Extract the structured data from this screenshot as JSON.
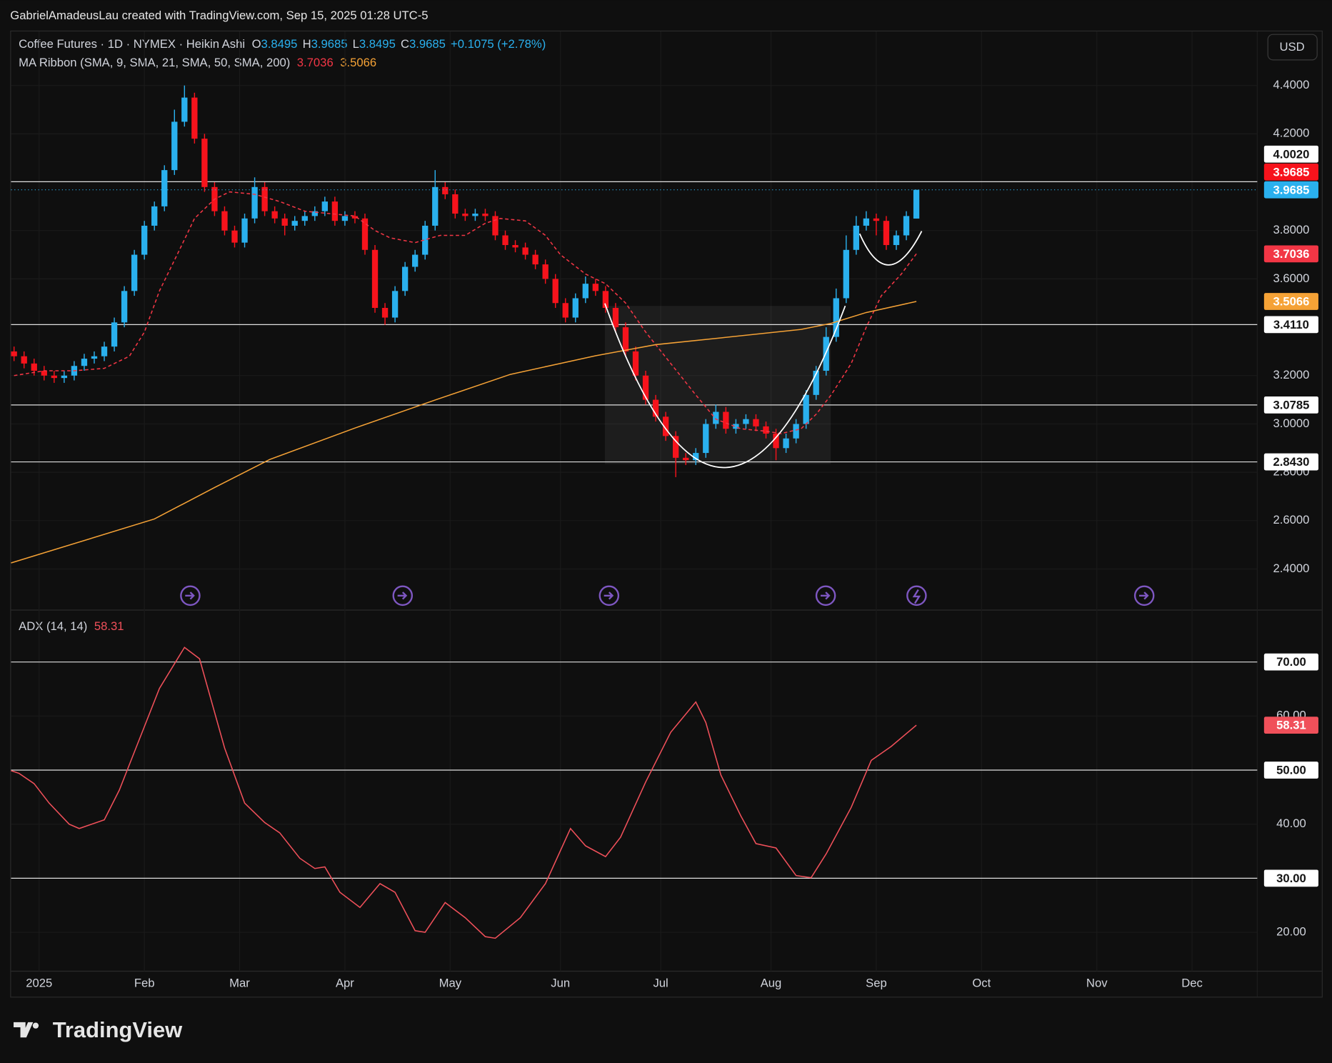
{
  "header": {
    "attribution": "GabrielAmadeusLau created with TradingView.com, Sep 15, 2025 01:28 UTC-5",
    "logo": "TradingView"
  },
  "chart_data": [
    {
      "type": "candlestick",
      "title": "Coffee Futures · 1D · NYMEX · Heikin Ashi",
      "ohlc": [
        {
          "label": "O",
          "value": 3.8495
        },
        {
          "label": "H",
          "value": 3.9685
        },
        {
          "label": "L",
          "value": 3.8495
        },
        {
          "label": "C",
          "value": 3.9685
        }
      ],
      "change": "+0.1075 (+2.78%)",
      "currency": "USD",
      "indicator": "MA Ribbon (SMA, 9, SMA, 21, SMA, 50, SMA, 200)",
      "up_color": "#2ab0ee",
      "down_color": "#f7131c",
      "x": [
        -5,
        -3,
        -1,
        1,
        3,
        5,
        7,
        9,
        11,
        13,
        15,
        17,
        19,
        21,
        23,
        25,
        27,
        29,
        31,
        33,
        35,
        37,
        39,
        41,
        43,
        45,
        47,
        49,
        51,
        53,
        55,
        57,
        59,
        61,
        63,
        65,
        67,
        69,
        71,
        73,
        75,
        77,
        79,
        81,
        83,
        85,
        87,
        89,
        91,
        93,
        95,
        97,
        99,
        101,
        103,
        105,
        107,
        109,
        111,
        113,
        115,
        117,
        119,
        121,
        123,
        125,
        127,
        129,
        131,
        133,
        135,
        137,
        139,
        141,
        143,
        145,
        147,
        149,
        151,
        153,
        155,
        157,
        159,
        161,
        163,
        165,
        167,
        169,
        171,
        173,
        175
      ],
      "open": [
        3.3,
        3.28,
        3.25,
        3.22,
        3.2,
        3.19,
        3.2,
        3.24,
        3.27,
        3.28,
        3.32,
        3.42,
        3.55,
        3.7,
        3.82,
        3.9,
        4.05,
        4.25,
        4.35,
        4.18,
        3.98,
        3.88,
        3.8,
        3.75,
        3.85,
        3.98,
        3.88,
        3.85,
        3.82,
        3.84,
        3.86,
        3.88,
        3.92,
        3.84,
        3.86,
        3.85,
        3.72,
        3.48,
        3.44,
        3.55,
        3.65,
        3.7,
        3.82,
        3.98,
        3.95,
        3.87,
        3.86,
        3.87,
        3.86,
        3.78,
        3.74,
        3.73,
        3.7,
        3.66,
        3.6,
        3.5,
        3.44,
        3.52,
        3.58,
        3.55,
        3.48,
        3.4,
        3.3,
        3.2,
        3.1,
        3.03,
        2.95,
        2.86,
        2.85,
        2.88,
        3.0,
        3.05,
        2.98,
        3.0,
        3.02,
        2.99,
        2.96,
        2.9,
        2.94,
        3.0,
        3.12,
        3.22,
        3.36,
        3.52,
        3.72,
        3.82,
        3.85,
        3.84,
        3.74,
        3.78,
        3.8495
      ],
      "high": [
        3.32,
        3.3,
        3.27,
        3.24,
        3.22,
        3.22,
        3.26,
        3.29,
        3.3,
        3.34,
        3.44,
        3.57,
        3.72,
        3.84,
        3.92,
        4.07,
        4.3,
        4.4,
        4.37,
        4.2,
        4.0,
        3.9,
        3.82,
        3.87,
        4.02,
        4.0,
        3.9,
        3.87,
        3.86,
        3.88,
        3.9,
        3.94,
        3.94,
        3.88,
        3.88,
        3.87,
        3.74,
        3.5,
        3.57,
        3.67,
        3.72,
        3.84,
        4.05,
        4.0,
        3.97,
        3.89,
        3.89,
        3.89,
        3.88,
        3.8,
        3.76,
        3.75,
        3.72,
        3.68,
        3.62,
        3.52,
        3.54,
        3.61,
        3.6,
        3.57,
        3.5,
        3.42,
        3.32,
        3.22,
        3.12,
        3.05,
        2.97,
        2.88,
        2.9,
        3.02,
        3.08,
        3.07,
        3.02,
        3.04,
        3.04,
        3.01,
        2.98,
        2.96,
        3.02,
        3.14,
        3.24,
        3.4,
        3.56,
        3.78,
        3.86,
        3.88,
        3.87,
        3.86,
        3.8,
        3.88,
        3.9685
      ],
      "low": [
        3.26,
        3.23,
        3.2,
        3.18,
        3.17,
        3.17,
        3.18,
        3.22,
        3.25,
        3.26,
        3.3,
        3.4,
        3.53,
        3.68,
        3.8,
        3.88,
        4.03,
        4.23,
        4.16,
        3.96,
        3.86,
        3.78,
        3.73,
        3.73,
        3.83,
        3.86,
        3.83,
        3.78,
        3.8,
        3.82,
        3.84,
        3.86,
        3.82,
        3.82,
        3.83,
        3.7,
        3.46,
        3.41,
        3.42,
        3.53,
        3.63,
        3.68,
        3.8,
        3.93,
        3.85,
        3.84,
        3.84,
        3.84,
        3.76,
        3.72,
        3.71,
        3.68,
        3.64,
        3.58,
        3.48,
        3.42,
        3.42,
        3.5,
        3.53,
        3.46,
        3.38,
        3.28,
        3.18,
        3.08,
        3.01,
        2.93,
        2.78,
        2.83,
        2.83,
        2.86,
        2.98,
        2.96,
        2.96,
        2.98,
        2.97,
        2.94,
        2.85,
        2.88,
        2.92,
        2.98,
        3.1,
        3.2,
        3.34,
        3.5,
        3.7,
        3.8,
        3.78,
        3.72,
        3.72,
        3.76,
        3.8495
      ],
      "close": [
        3.28,
        3.25,
        3.22,
        3.2,
        3.19,
        3.2,
        3.24,
        3.27,
        3.28,
        3.32,
        3.42,
        3.55,
        3.7,
        3.82,
        3.9,
        4.05,
        4.25,
        4.35,
        4.18,
        3.98,
        3.88,
        3.8,
        3.75,
        3.85,
        3.98,
        3.88,
        3.85,
        3.82,
        3.84,
        3.86,
        3.88,
        3.92,
        3.84,
        3.86,
        3.85,
        3.72,
        3.48,
        3.44,
        3.55,
        3.65,
        3.7,
        3.82,
        3.98,
        3.95,
        3.87,
        3.86,
        3.87,
        3.86,
        3.78,
        3.74,
        3.73,
        3.7,
        3.66,
        3.6,
        3.5,
        3.44,
        3.52,
        3.58,
        3.55,
        3.48,
        3.4,
        3.3,
        3.2,
        3.1,
        3.03,
        2.95,
        2.86,
        2.85,
        2.88,
        3.0,
        3.05,
        2.98,
        3.0,
        3.02,
        2.99,
        2.96,
        2.9,
        2.94,
        3.0,
        3.12,
        3.22,
        3.36,
        3.52,
        3.72,
        3.82,
        3.85,
        3.84,
        3.74,
        3.78,
        3.86,
        3.9685
      ],
      "series": [
        {
          "color": "#f23645",
          "dashed": true,
          "x": [
            -5,
            1,
            7,
            13,
            18,
            21,
            24,
            28,
            31,
            35,
            38,
            43,
            48,
            53,
            58,
            63,
            67,
            70,
            75,
            80,
            85,
            89,
            92,
            97,
            101,
            104,
            109,
            113,
            117,
            121,
            126,
            131,
            135,
            140,
            145,
            148,
            152,
            155,
            158,
            162,
            165,
            168,
            172,
            175
          ],
          "values": [
            3.2,
            3.22,
            3.22,
            3.23,
            3.28,
            3.38,
            3.55,
            3.72,
            3.85,
            3.93,
            3.96,
            3.95,
            3.92,
            3.88,
            3.87,
            3.86,
            3.8,
            3.77,
            3.75,
            3.78,
            3.78,
            3.83,
            3.85,
            3.84,
            3.78,
            3.7,
            3.62,
            3.58,
            3.5,
            3.38,
            3.25,
            3.12,
            3.02,
            2.98,
            2.97,
            2.96,
            2.98,
            3.04,
            3.12,
            3.25,
            3.4,
            3.53,
            3.62,
            3.7036
          ]
        },
        {
          "color": "#f5a236",
          "dashed": false,
          "x": [
            -5.6,
            23,
            35,
            46,
            63,
            79,
            94,
            111,
            123,
            136,
            152,
            158,
            165,
            175
          ],
          "values": [
            2.425,
            2.607,
            2.737,
            2.853,
            2.983,
            3.099,
            3.205,
            3.282,
            3.328,
            3.356,
            3.391,
            3.416,
            3.461,
            3.5066
          ]
        }
      ],
      "levels": [
        {
          "value": 4.002,
          "label": "4.0020"
        },
        {
          "value": 3.411,
          "label": "3.4110"
        },
        {
          "value": 3.0785,
          "label": "3.0785"
        },
        {
          "value": 2.843,
          "label": "2.8430"
        }
      ],
      "xlim": [
        -5.6,
        243
      ],
      "xticks": [
        {
          "value": 0,
          "label": "2025"
        },
        {
          "value": 21,
          "label": "Feb"
        },
        {
          "value": 40,
          "label": "Mar"
        },
        {
          "value": 61,
          "label": "Apr"
        },
        {
          "value": 82,
          "label": "May"
        },
        {
          "value": 104,
          "label": "Jun"
        },
        {
          "value": 124,
          "label": "Jul"
        },
        {
          "value": 146,
          "label": "Aug"
        },
        {
          "value": 167,
          "label": "Sep"
        },
        {
          "value": 188,
          "label": "Oct"
        },
        {
          "value": 211,
          "label": "Nov"
        },
        {
          "value": 230,
          "label": "Dec"
        }
      ],
      "ylim": [
        2.23,
        4.62
      ],
      "yticks": [
        {
          "value": 4.4,
          "label": "4.4000"
        },
        {
          "value": 4.2,
          "label": "4.2000"
        },
        {
          "value": 3.8,
          "label": "3.8000"
        },
        {
          "value": 3.6,
          "label": "3.6000"
        },
        {
          "value": 3.2,
          "label": "3.2000"
        },
        {
          "value": 3.0,
          "label": "3.0000"
        },
        {
          "value": 2.8,
          "label": "2.8000"
        },
        {
          "value": 2.6,
          "label": "2.6000"
        },
        {
          "value": 2.4,
          "label": "2.4000"
        }
      ],
      "grid": true
    },
    {
      "type": "line",
      "title": "ADX (14, 14)",
      "color": "#f0505a",
      "x": [
        -5.6,
        -4,
        -1,
        2,
        6,
        8,
        13,
        16,
        20,
        24,
        29,
        32,
        37,
        41,
        45,
        48,
        52,
        55,
        57,
        60,
        64,
        68,
        71,
        75,
        77,
        81,
        85,
        89,
        91,
        96,
        101,
        106,
        109,
        113,
        116,
        121,
        126,
        131,
        133,
        136,
        140,
        143,
        147,
        151,
        154,
        157,
        162,
        166,
        170,
        175
      ],
      "values": [
        49.9,
        49.4,
        47.5,
        43.9,
        40.0,
        39.2,
        40.8,
        46.3,
        55.7,
        65.1,
        72.7,
        70.6,
        54.1,
        43.9,
        40.3,
        38.4,
        33.7,
        31.8,
        32.1,
        27.4,
        24.6,
        29.0,
        27.4,
        20.3,
        20.0,
        25.5,
        22.7,
        19.2,
        18.9,
        22.7,
        29.0,
        39.2,
        36.0,
        34.0,
        37.6,
        47.8,
        57.0,
        62.6,
        58.8,
        49.1,
        41.5,
        36.4,
        35.6,
        30.5,
        30.1,
        34.5,
        43.1,
        51.8,
        54.4,
        58.31
      ],
      "levels": [
        {
          "value": 70,
          "label": "70.00"
        },
        {
          "value": 50,
          "label": "50.00"
        },
        {
          "value": 30,
          "label": "30.00"
        }
      ],
      "ylim": [
        12.8,
        79.6
      ],
      "yticks": [
        {
          "value": 60,
          "label": "60.00"
        },
        {
          "value": 40,
          "label": "40.00"
        },
        {
          "value": 20,
          "label": "20.00"
        }
      ],
      "grid": true
    }
  ]
}
